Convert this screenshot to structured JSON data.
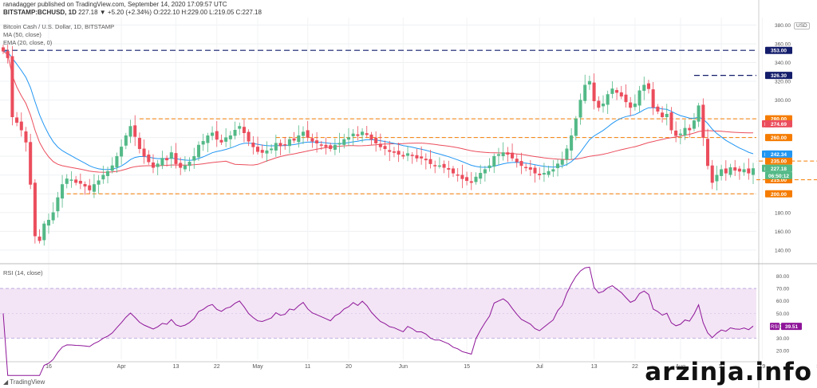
{
  "header": {
    "line1": "ranadagger published on TradingView.com, September 14, 2020 17:09:57 UTC",
    "line2_symbol": "BITSTAMP:BCHUSD, 1D",
    "line2_values": "227.18 ▼ +5.20 (+2.34%) O:222.10 H:229.00 L:219.05 C:227.18",
    "change_color": "#26a69a"
  },
  "legend": {
    "title": "Bitcoin Cash / U.S. Dollar, 1D, BITSTAMP",
    "ma": "MA (50, close)",
    "ema": "EMA (20, close, 0)"
  },
  "rsi_legend": "RSI (14, close)",
  "usd_label": "USD",
  "watermark": "arzinja.info",
  "tv_logo": "TradingView",
  "colors": {
    "up": "#53b987",
    "down": "#eb4d5c",
    "ma": "#eb4d5c",
    "ema": "#2196f3",
    "rsi": "#8e1599",
    "orange": "#f57c00",
    "navy": "#131d6b",
    "rsi_band": "#f3e5f5"
  },
  "chart_data": {
    "type": "candlestick",
    "price_axis": {
      "ticks": [
        140,
        160,
        180,
        200,
        220,
        240,
        260,
        280,
        300,
        320,
        340,
        360,
        380
      ],
      "min": 128,
      "max": 388
    },
    "rsi_axis": {
      "ticks": [
        20,
        30,
        40,
        50,
        60,
        70,
        80
      ],
      "min": 13,
      "max": 88,
      "band": [
        30,
        70
      ]
    },
    "x_labels": [
      {
        "label": "16",
        "i": 10
      },
      {
        "label": "Apr",
        "i": 26
      },
      {
        "label": "13",
        "i": 38
      },
      {
        "label": "22",
        "i": 47
      },
      {
        "label": "May",
        "i": 56
      },
      {
        "label": "11",
        "i": 67
      },
      {
        "label": "20",
        "i": 76
      },
      {
        "label": "Jun",
        "i": 88
      },
      {
        "label": "15",
        "i": 102
      },
      {
        "label": "Jul",
        "i": 118
      },
      {
        "label": "13",
        "i": 130
      },
      {
        "label": "22",
        "i": 139
      },
      {
        "label": "Aug",
        "i": 149
      },
      {
        "label": "10",
        "i": 158
      },
      {
        "label": "19",
        "i": 167
      },
      {
        "label": "Sep",
        "i": 180
      },
      {
        "label": "14",
        "i": 193
      }
    ],
    "levels": [
      {
        "value": 353.0,
        "style": "navy",
        "label": "353.00",
        "from": 0
      },
      {
        "value": 326.3,
        "style": "navy",
        "label": "326.30",
        "from": 152
      },
      {
        "value": 280.0,
        "style": "orange",
        "label": "280.00",
        "from": 30
      },
      {
        "value": 260.0,
        "style": "orange",
        "label": "260.00",
        "from": 60
      },
      {
        "value": 235.0,
        "style": "orange",
        "label": "235.00",
        "from": 184
      },
      {
        "value": 215.0,
        "style": "orange",
        "label": "215.00",
        "from": 182
      },
      {
        "value": 200.0,
        "style": "orange",
        "label": "200.00",
        "from": 14
      }
    ],
    "badges": [
      {
        "label": "EMA",
        "value": "242.34",
        "price": 242.34,
        "color": "#2196f3"
      },
      {
        "label": "MA",
        "value": "274.69",
        "price": 274.69,
        "color": "#eb4d5c"
      },
      {
        "label": "BCHUSD",
        "value": "227.18",
        "price": 227.18,
        "color": "#53b987"
      },
      {
        "label": "",
        "value": "06:50:12",
        "price": 219.5,
        "color": "#53b987"
      }
    ],
    "rsi_badge": {
      "label": "RSI",
      "value": "39.51",
      "rsi": 39.51,
      "color": "#8e1599"
    },
    "closes": [
      352,
      345,
      282,
      276,
      268,
      255,
      210,
      155,
      150,
      168,
      172,
      180,
      196,
      210,
      216,
      215,
      212,
      211,
      208,
      204,
      210,
      214,
      220,
      224,
      230,
      240,
      250,
      262,
      272,
      261,
      248,
      240,
      234,
      228,
      232,
      238,
      236,
      244,
      232,
      228,
      230,
      234,
      240,
      252,
      256,
      262,
      265,
      258,
      255,
      260,
      262,
      268,
      272,
      265,
      256,
      250,
      245,
      244,
      246,
      248,
      254,
      251,
      252,
      258,
      257,
      262,
      266,
      260,
      256,
      254,
      252,
      250,
      248,
      252,
      254,
      258,
      260,
      264,
      262,
      266,
      263,
      258,
      254,
      250,
      248,
      245,
      244,
      242,
      240,
      243,
      241,
      238,
      238,
      236,
      232,
      230,
      230,
      228,
      226,
      222,
      220,
      216,
      214,
      212,
      218,
      222,
      226,
      230,
      240,
      242,
      244,
      242,
      238,
      234,
      230,
      228,
      226,
      222,
      220,
      222,
      224,
      226,
      232,
      236,
      248,
      262,
      280,
      300,
      316,
      320,
      299,
      292,
      296,
      306,
      312,
      308,
      304,
      298,
      292,
      296,
      310,
      316,
      312,
      292,
      288,
      282,
      285,
      268,
      262,
      264,
      270,
      268,
      278,
      294,
      260,
      230,
      212,
      220,
      226,
      222,
      228,
      225,
      224,
      226,
      222,
      227
    ]
  }
}
